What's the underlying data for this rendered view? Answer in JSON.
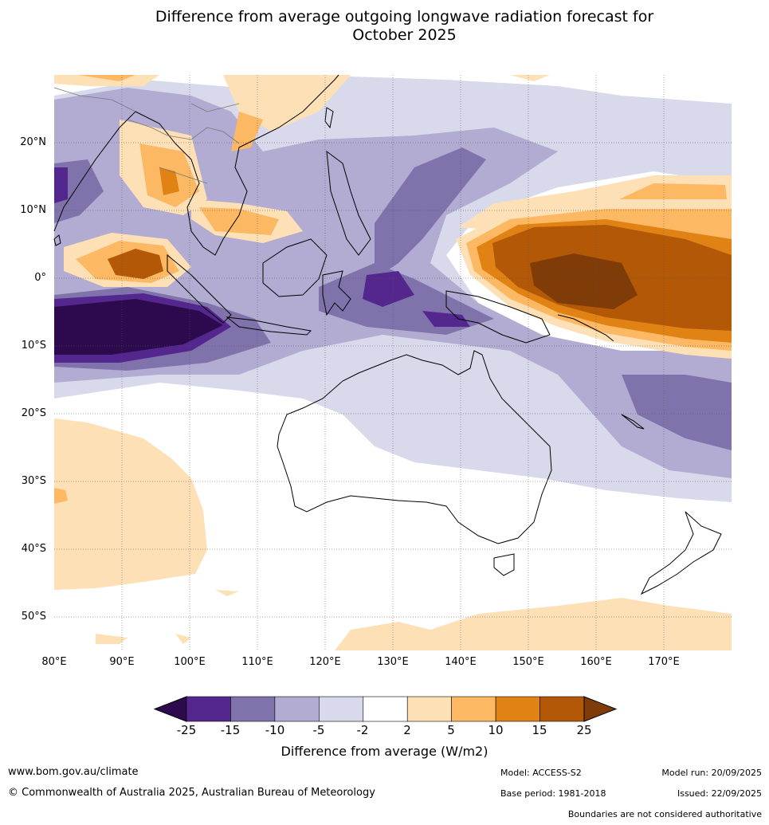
{
  "title": {
    "line1": "Difference from average outgoing longwave radiation forecast for",
    "line2": "October 2025"
  },
  "map": {
    "lat_labels": [
      "20°N",
      "10°N",
      "0°",
      "10°S",
      "20°S",
      "30°S",
      "40°S",
      "50°S"
    ],
    "lon_labels": [
      "80°E",
      "90°E",
      "100°E",
      "110°E",
      "120°E",
      "130°E",
      "140°E",
      "150°E",
      "160°E",
      "170°E"
    ],
    "extent": {
      "lon_min": 80,
      "lon_max": 180,
      "lat_min": -55,
      "lat_max": 30
    }
  },
  "colorbar": {
    "ticks": [
      "-25",
      "-15",
      "-10",
      "-5",
      "-2",
      "2",
      "5",
      "10",
      "15",
      "25"
    ],
    "colors": [
      "#2d0a4e",
      "#54278f",
      "#8073ac",
      "#b2abd2",
      "#d8daeb",
      "#ffffff",
      "#fee0b6",
      "#fdb863",
      "#e08214",
      "#b35806",
      "#7f3b08"
    ],
    "label": "Difference from average (W/m2)"
  },
  "footer": {
    "website": "www.bom.gov.au/climate",
    "copyright": "© Commonwealth of Australia 2025, Australian Bureau of Meteorology",
    "model": "Model: ACCESS-S2",
    "base_period": "Base period: 1981-2018",
    "model_run": "Model run: 20/09/2025",
    "issued": "Issued: 22/09/2025",
    "boundaries_note": "Boundaries are not considered authoritative"
  }
}
